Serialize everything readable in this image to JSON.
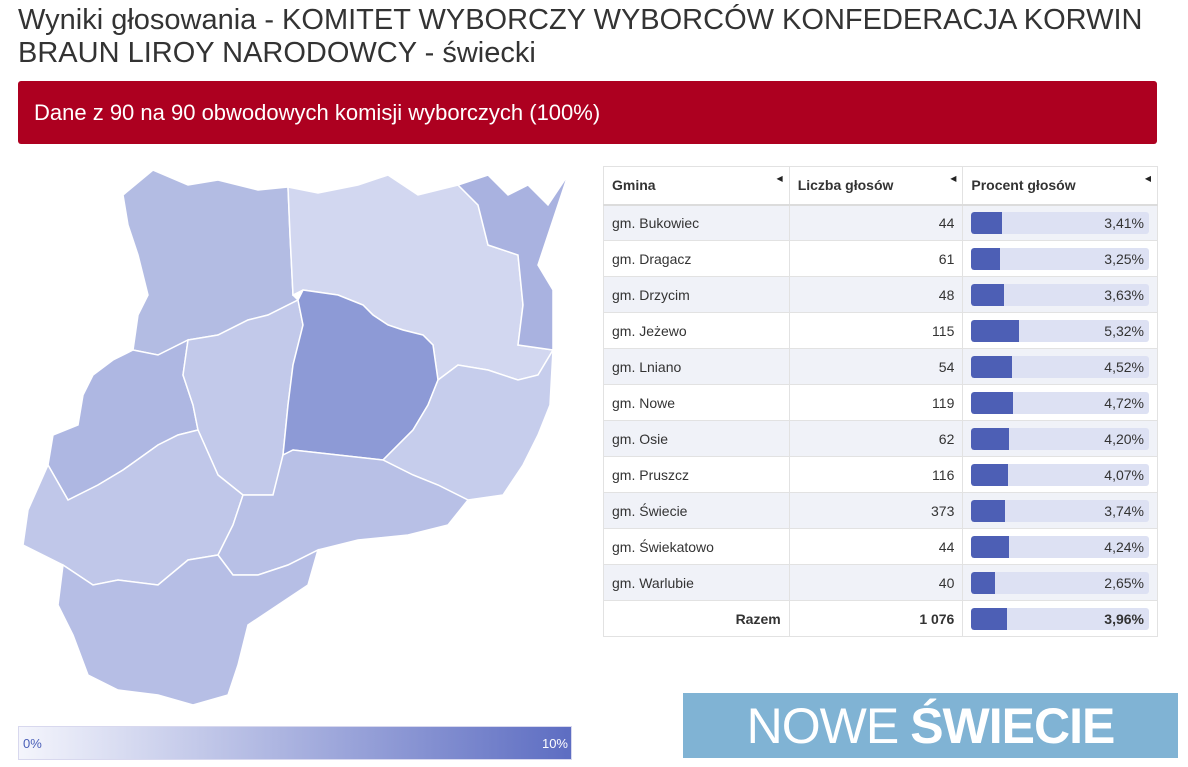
{
  "title": "Wyniki głosowania - KOMITET WYBORCZY WYBORCÓW KONFEDERACJA KORWIN BRAUN LIROY NARODOWCY - świecki",
  "banner": "Dane z 90 na 90 obwodowych komisji wyborczych (100%)",
  "table": {
    "headers": [
      "Gmina",
      "Liczba głosów",
      "Procent głosów"
    ],
    "rows": [
      {
        "gmina": "gm. Bukowiec",
        "votes": "44",
        "pct": "3,41%",
        "pct_value": 3.41
      },
      {
        "gmina": "gm. Dragacz",
        "votes": "61",
        "pct": "3,25%",
        "pct_value": 3.25
      },
      {
        "gmina": "gm. Drzycim",
        "votes": "48",
        "pct": "3,63%",
        "pct_value": 3.63
      },
      {
        "gmina": "gm. Jeżewo",
        "votes": "115",
        "pct": "5,32%",
        "pct_value": 5.32
      },
      {
        "gmina": "gm. Lniano",
        "votes": "54",
        "pct": "4,52%",
        "pct_value": 4.52
      },
      {
        "gmina": "gm. Nowe",
        "votes": "119",
        "pct": "4,72%",
        "pct_value": 4.72
      },
      {
        "gmina": "gm. Osie",
        "votes": "62",
        "pct": "4,20%",
        "pct_value": 4.2
      },
      {
        "gmina": "gm. Pruszcz",
        "votes": "116",
        "pct": "4,07%",
        "pct_value": 4.07
      },
      {
        "gmina": "gm. Świecie",
        "votes": "373",
        "pct": "3,74%",
        "pct_value": 3.74
      },
      {
        "gmina": "gm. Świekatowo",
        "votes": "44",
        "pct": "4,24%",
        "pct_value": 4.24
      },
      {
        "gmina": "gm. Warlubie",
        "votes": "40",
        "pct": "2,65%",
        "pct_value": 2.65
      }
    ],
    "total": {
      "label": "Razem",
      "votes": "1 076",
      "pct": "3,96%",
      "pct_value": 3.96
    }
  },
  "legend": {
    "min": "0%",
    "max": "10%",
    "min_value": 0,
    "max_value": 10
  },
  "logo": {
    "part1": "NOWE",
    "part2": "ŚWIECIE"
  },
  "colors": {
    "banner": "#ad0020",
    "bar_fill": "#4d5fb5",
    "bar_track": "#dde1f3",
    "logo_bg": "#80b3d4"
  },
  "icons": {
    "sort": "sort-arrow-icon"
  }
}
